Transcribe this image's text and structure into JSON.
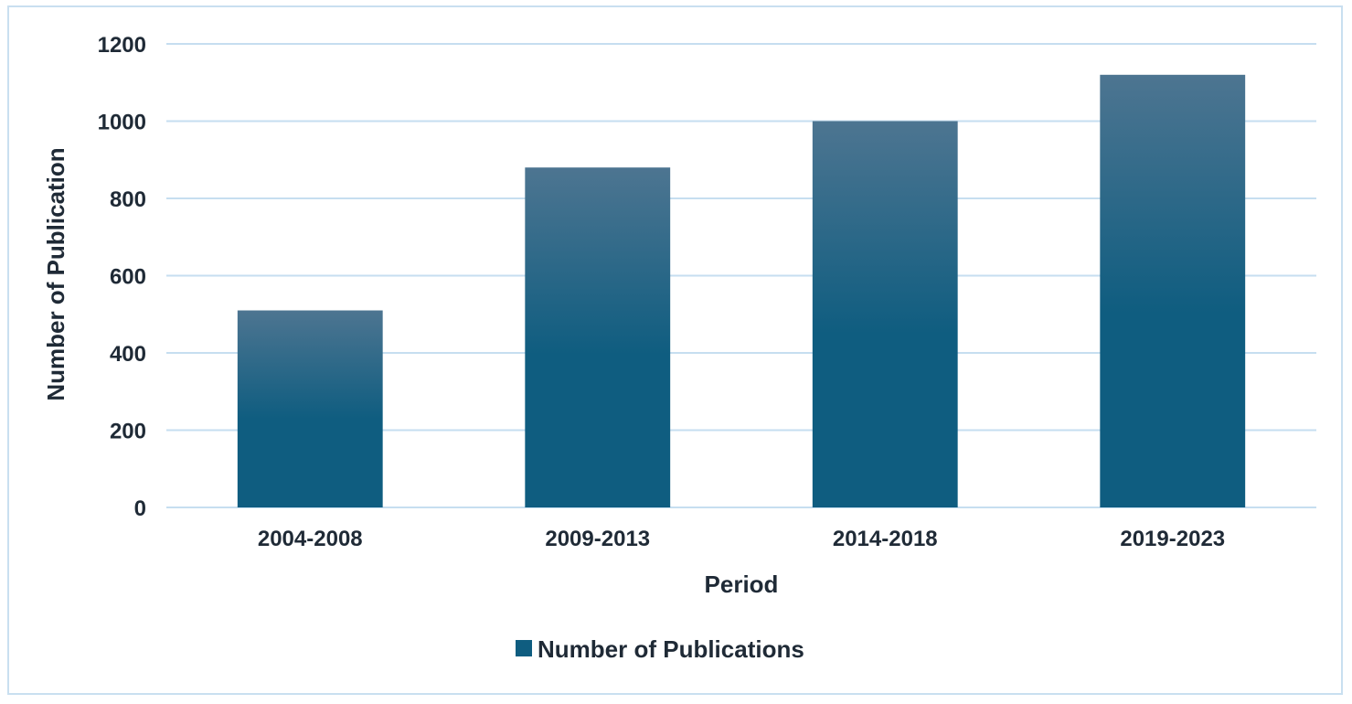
{
  "chart_data": {
    "type": "bar",
    "categories": [
      "2004-2008",
      "2009-2013",
      "2014-2018",
      "2019-2023"
    ],
    "series": [
      {
        "name": "Number of Publications",
        "values": [
          510,
          880,
          1000,
          1120
        ],
        "color": "#0f5d80"
      }
    ],
    "xlabel": "Period",
    "ylabel": "Number of  Publication",
    "ylim": [
      0,
      1200
    ],
    "yticks": [
      0,
      200,
      400,
      600,
      800,
      1000,
      1200
    ],
    "grid": true,
    "legend_position": "bottom-center",
    "colors": {
      "bar_top": "#4d7591",
      "bar_bottom": "#0f5d80",
      "grid": "#c6def0",
      "border": "#c9dff0",
      "text": "#1f2a36"
    }
  }
}
